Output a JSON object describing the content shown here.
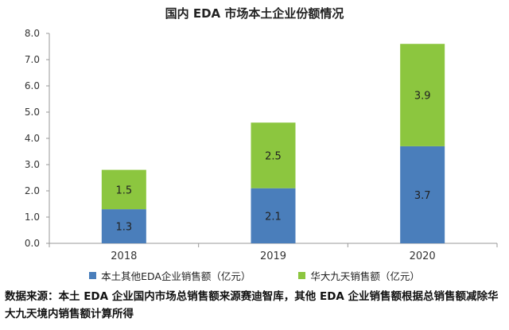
{
  "source_note": "数据来源：本土 EDA 企业国内市场总销售额来源赛迪智库，其他 EDA 企业销售额根据总销售额减除华大九天境内销售额计算所得",
  "chart_data": {
    "type": "bar",
    "stacked": true,
    "title": "国内 EDA 市场本土企业份额情况",
    "xlabel": "",
    "ylabel": "",
    "categories": [
      "2018",
      "2019",
      "2020"
    ],
    "ylim": [
      0,
      8
    ],
    "yticks": [
      "0.0",
      "1.0",
      "2.0",
      "3.0",
      "4.0",
      "5.0",
      "6.0",
      "7.0",
      "8.0"
    ],
    "grid": false,
    "legend_position": "bottom",
    "series": [
      {
        "name": "本土其他EDA企业销售额（亿元）",
        "values": [
          1.3,
          2.1,
          3.7
        ],
        "labels": [
          "1.3",
          "2.1",
          "3.7"
        ],
        "color": "#4a7ebb"
      },
      {
        "name": "华大九天销售额（亿元）",
        "values": [
          1.5,
          2.5,
          3.9
        ],
        "labels": [
          "1.5",
          "2.5",
          "3.9"
        ],
        "color": "#8cc63f"
      }
    ]
  }
}
